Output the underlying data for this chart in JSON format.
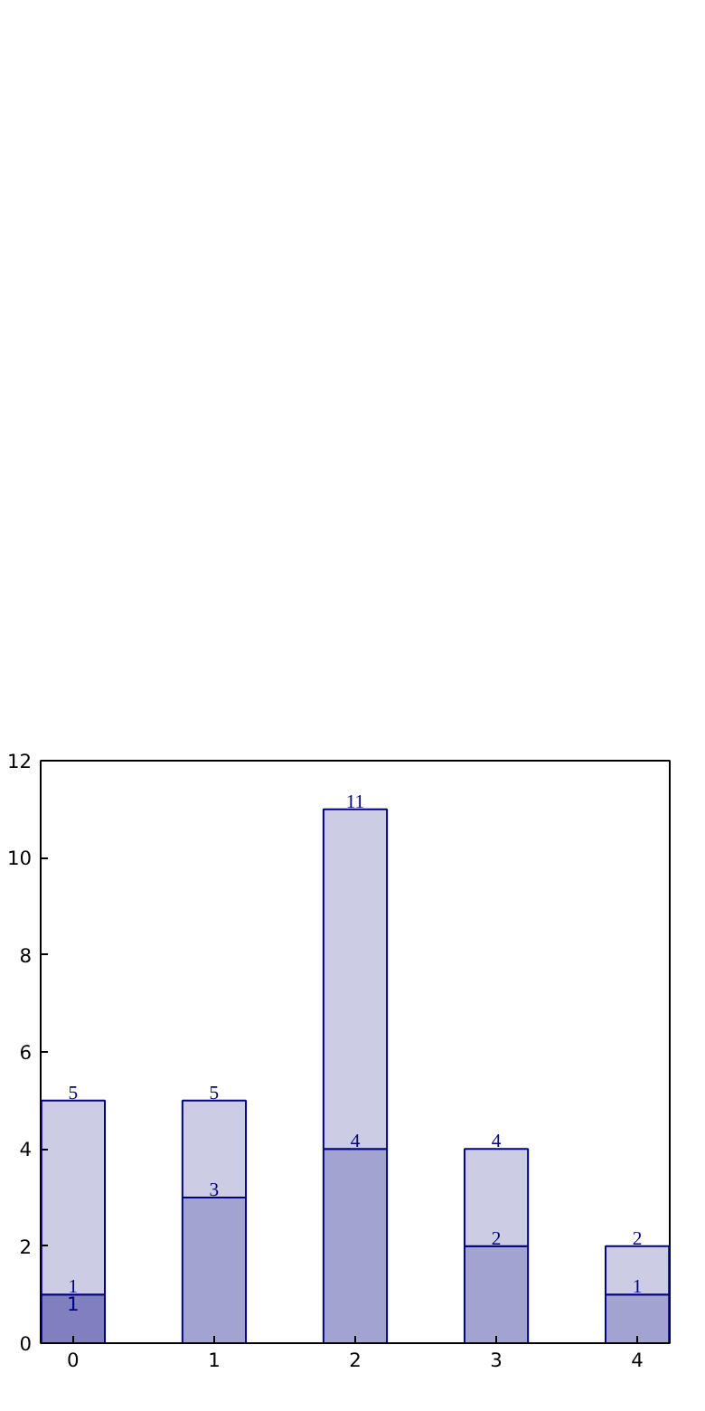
{
  "chart_data": {
    "type": "bar",
    "stacked": true,
    "categories": [
      "0",
      "1",
      "2",
      "3",
      "4"
    ],
    "series": [
      {
        "colors": [
          "#8080bf",
          "#a3a3d0",
          "#a3a3d0",
          "#a3a3d0",
          "#a3a3d0"
        ],
        "values": [
          1,
          3,
          4,
          2,
          1
        ],
        "value_labels": [
          "1",
          "3",
          "4",
          "2",
          "1"
        ]
      },
      {
        "color": "#cccce4",
        "values": [
          4,
          2,
          7,
          2,
          1
        ]
      }
    ],
    "totals": [
      "5",
      "5",
      "11",
      "4",
      "2"
    ],
    "annotations": [
      {
        "text": "1",
        "x": "0",
        "y": 1
      }
    ],
    "ylim": [
      0,
      12
    ],
    "yticks": [
      0,
      2,
      4,
      6,
      8,
      10,
      12
    ],
    "grid": false
  }
}
